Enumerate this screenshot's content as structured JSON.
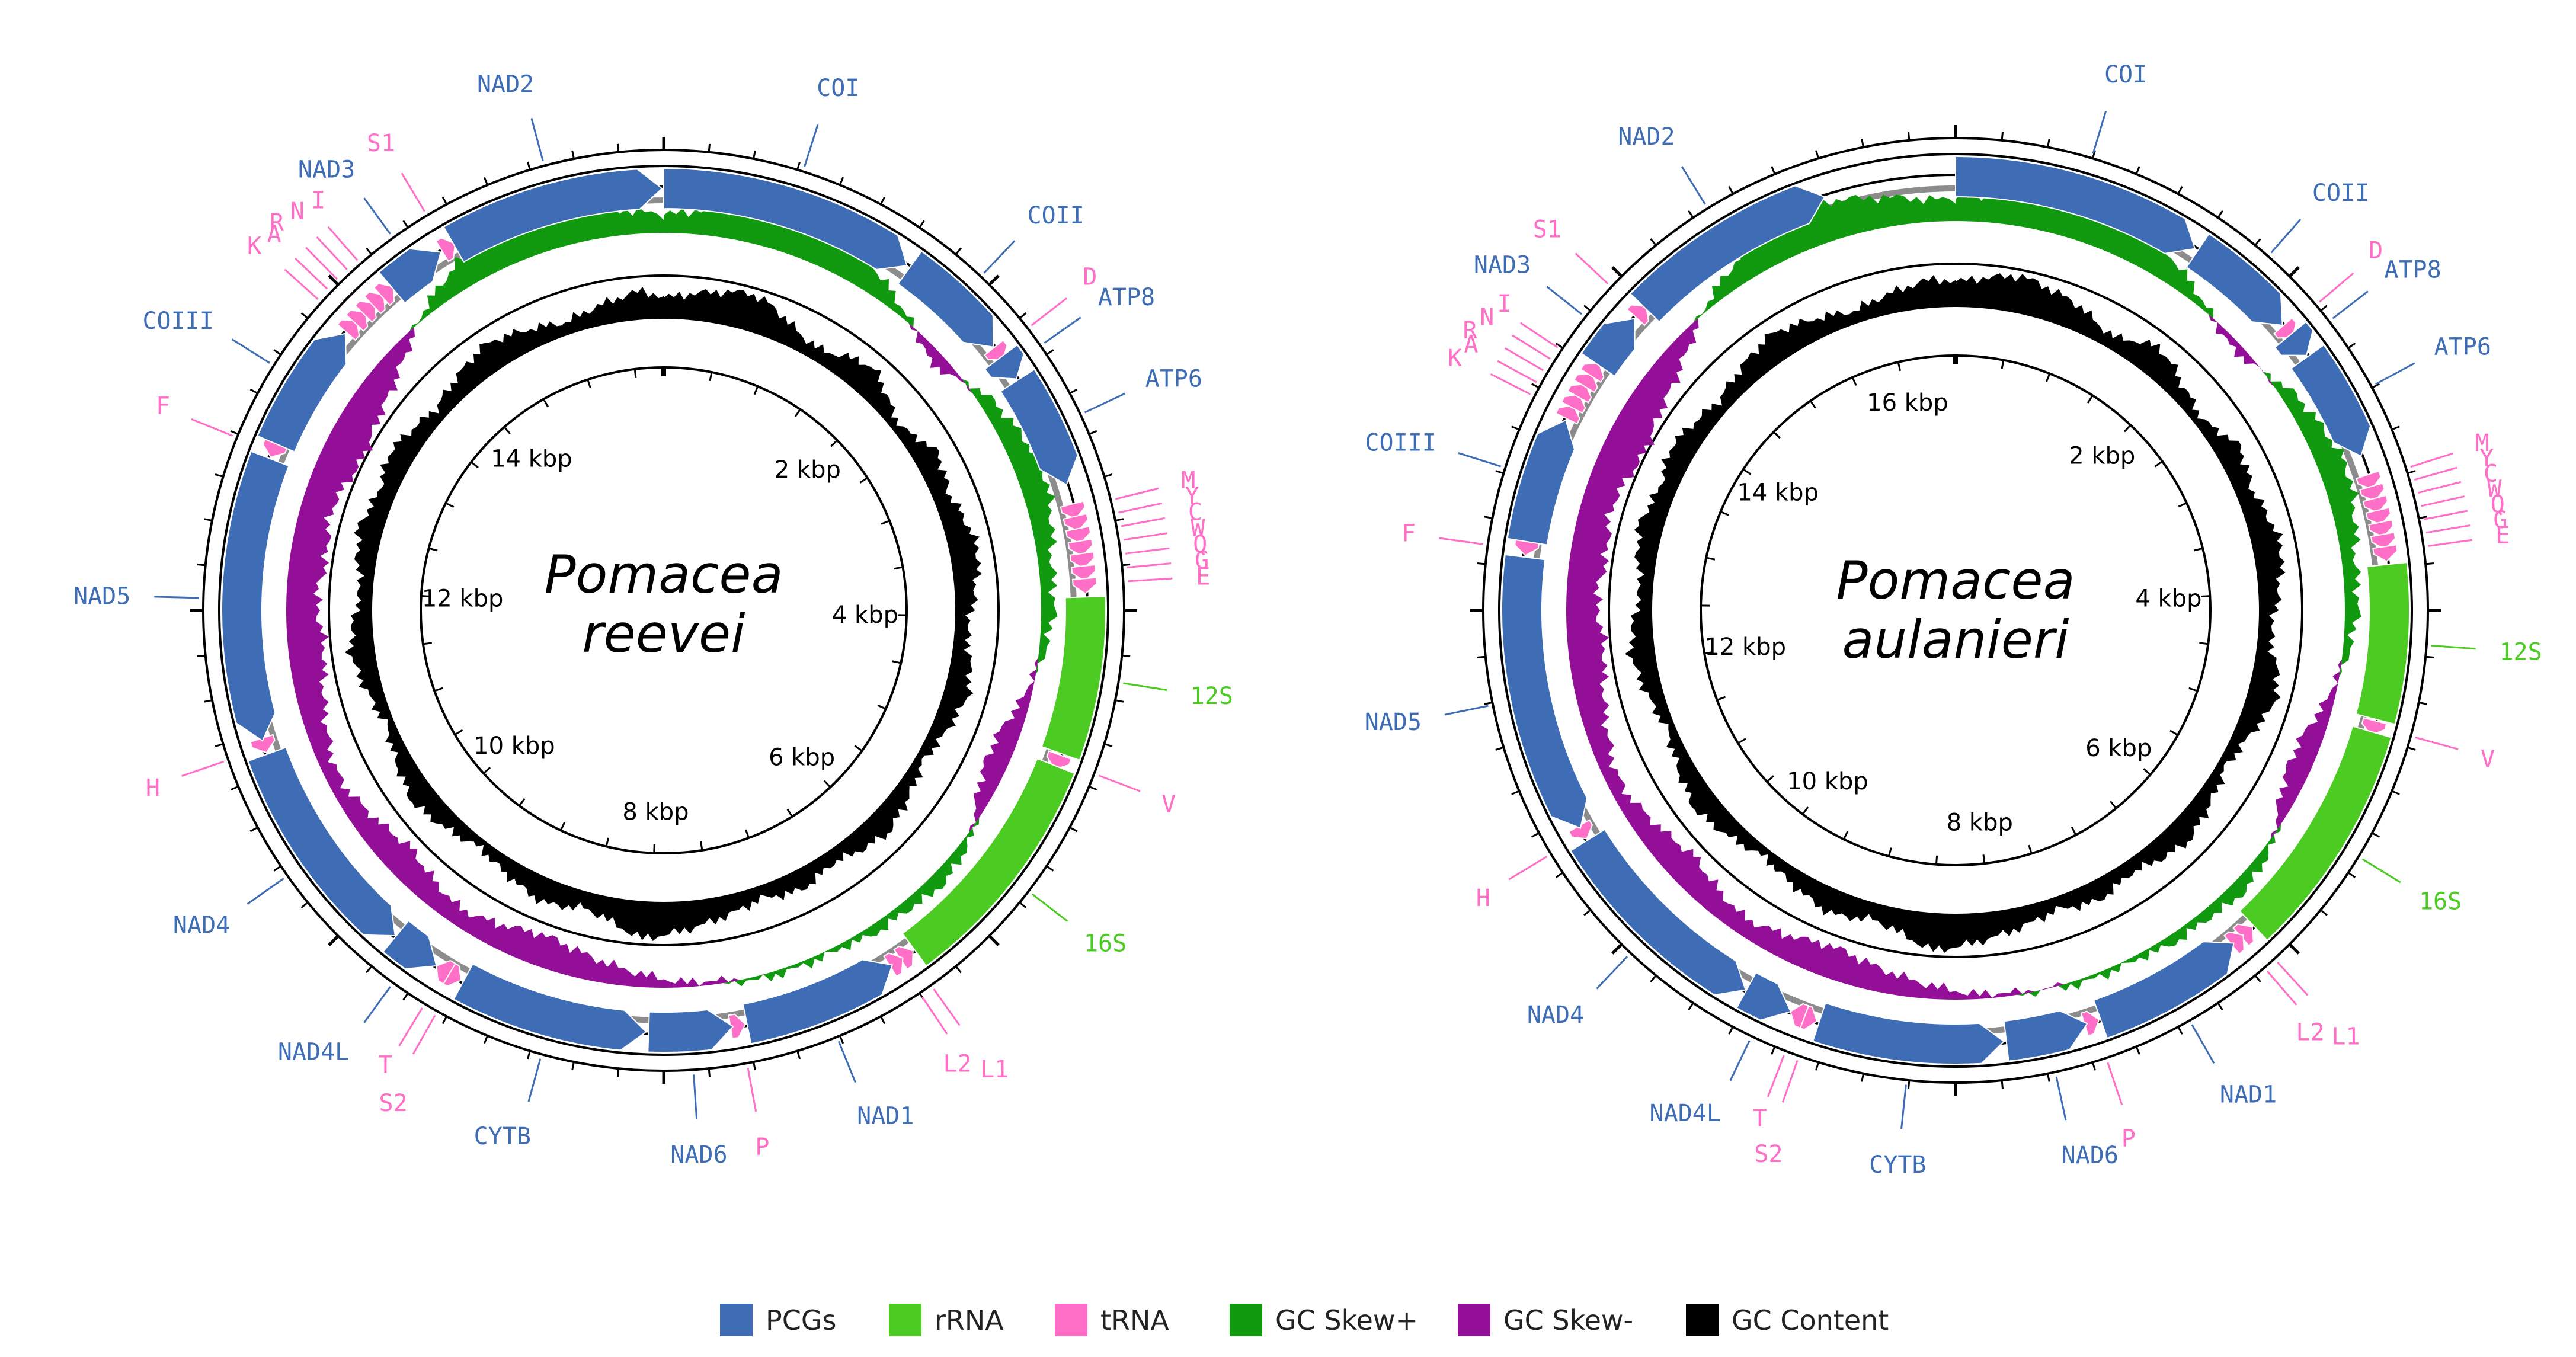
{
  "colors": {
    "pcg": "#3e6db5",
    "rrna": "#4ccb22",
    "trna": "#ff6ec7",
    "gc_skew_pos": "#119a10",
    "gc_skew_neg": "#930f98",
    "gc_content": "#000000",
    "pcg_label": "#3e6db5",
    "rrna_label": "#4ccb22",
    "trna_label": "#ff6ec7"
  },
  "legend": [
    {
      "label": "PCGs",
      "color": "#3e6db5"
    },
    {
      "label": "rRNA",
      "color": "#4ccb22"
    },
    {
      "label": "tRNA",
      "color": "#ff6ec7"
    },
    {
      "label": "GC Skew+",
      "color": "#119a10"
    },
    {
      "label": "GC Skew-",
      "color": "#930f98"
    },
    {
      "label": "GC Content",
      "color": "#000000"
    }
  ],
  "maps": [
    {
      "species_line1": "Pomacea",
      "species_line2": "reevei",
      "genome_length_kbp": 15.8,
      "kbp_ticks": [
        {
          "kbp": 2,
          "label": "2 kbp"
        },
        {
          "kbp": 4,
          "label": "4 kbp"
        },
        {
          "kbp": 6,
          "label": "6 kbp"
        },
        {
          "kbp": 8,
          "label": "8 kbp"
        },
        {
          "kbp": 10,
          "label": "10 kbp"
        },
        {
          "kbp": 12,
          "label": "12 kbp"
        },
        {
          "kbp": 14,
          "label": "14 kbp"
        }
      ],
      "features": [
        {
          "name": "COI",
          "type": "pcg",
          "start": 0,
          "end": 1545,
          "strand": "+"
        },
        {
          "name": "COII",
          "type": "pcg",
          "start": 1565,
          "end": 2255,
          "strand": "+"
        },
        {
          "name": "D",
          "type": "trna",
          "start": 2260,
          "end": 2325,
          "strand": "+"
        },
        {
          "name": "ATP8",
          "type": "pcg",
          "start": 2330,
          "end": 2490,
          "strand": "+"
        },
        {
          "name": "ATP6",
          "type": "pcg",
          "start": 2500,
          "end": 3190,
          "strand": "+"
        },
        {
          "name": "M",
          "type": "trna",
          "start": 3310,
          "end": 3375,
          "strand": "+"
        },
        {
          "name": "Y",
          "type": "trna",
          "start": 3385,
          "end": 3450,
          "strand": "+"
        },
        {
          "name": "C",
          "type": "trna",
          "start": 3460,
          "end": 3525,
          "strand": "+"
        },
        {
          "name": "W",
          "type": "trna",
          "start": 3535,
          "end": 3600,
          "strand": "+"
        },
        {
          "name": "Q",
          "type": "trna",
          "start": 3610,
          "end": 3675,
          "strand": "+"
        },
        {
          "name": "G",
          "type": "trna",
          "start": 3685,
          "end": 3750,
          "strand": "+"
        },
        {
          "name": "E",
          "type": "trna",
          "start": 3760,
          "end": 3825,
          "strand": "+"
        },
        {
          "name": "12S",
          "type": "rrna",
          "start": 3870,
          "end": 4820,
          "strand": "+"
        },
        {
          "name": "V",
          "type": "trna",
          "start": 4830,
          "end": 4895,
          "strand": "+"
        },
        {
          "name": "16S",
          "type": "rrna",
          "start": 4900,
          "end": 6300,
          "strand": "+"
        },
        {
          "name": "L1",
          "type": "trna",
          "start": 6310,
          "end": 6375,
          "strand": "-"
        },
        {
          "name": "L2",
          "type": "trna",
          "start": 6385,
          "end": 6450,
          "strand": "-"
        },
        {
          "name": "NAD1",
          "type": "pcg",
          "start": 6460,
          "end": 7400,
          "strand": "-"
        },
        {
          "name": "P",
          "type": "trna",
          "start": 7410,
          "end": 7475,
          "strand": "-"
        },
        {
          "name": "NAD6",
          "type": "pcg",
          "start": 7485,
          "end": 7990,
          "strand": "-"
        },
        {
          "name": "CYTB",
          "type": "pcg",
          "start": 8005,
          "end": 9145,
          "strand": "-"
        },
        {
          "name": "S2",
          "type": "trna",
          "start": 9160,
          "end": 9225,
          "strand": "-"
        },
        {
          "name": "T",
          "type": "trna",
          "start": 9240,
          "end": 9305,
          "strand": "+"
        },
        {
          "name": "NAD4L",
          "type": "pcg",
          "start": 9330,
          "end": 9630,
          "strand": "-"
        },
        {
          "name": "NAD4",
          "type": "pcg",
          "start": 9635,
          "end": 10975,
          "strand": "-"
        },
        {
          "name": "H",
          "type": "trna",
          "start": 10985,
          "end": 11050,
          "strand": "-"
        },
        {
          "name": "NAD5",
          "type": "pcg",
          "start": 11060,
          "end": 12775,
          "strand": "-"
        },
        {
          "name": "F",
          "type": "trna",
          "start": 12785,
          "end": 12850,
          "strand": "-"
        },
        {
          "name": "COIII",
          "type": "pcg",
          "start": 12870,
          "end": 13650,
          "strand": "+"
        },
        {
          "name": "K",
          "type": "trna",
          "start": 13660,
          "end": 13725,
          "strand": "+"
        },
        {
          "name": "A",
          "type": "trna",
          "start": 13735,
          "end": 13800,
          "strand": "+"
        },
        {
          "name": "R",
          "type": "trna",
          "start": 13810,
          "end": 13875,
          "strand": "+"
        },
        {
          "name": "N",
          "type": "trna",
          "start": 13885,
          "end": 13950,
          "strand": "+"
        },
        {
          "name": "I",
          "type": "trna",
          "start": 13960,
          "end": 14025,
          "strand": "+"
        },
        {
          "name": "NAD3",
          "type": "pcg",
          "start": 14040,
          "end": 14400,
          "strand": "+"
        },
        {
          "name": "S1",
          "type": "trna",
          "start": 14410,
          "end": 14475,
          "strand": "+"
        },
        {
          "name": "NAD2",
          "type": "pcg",
          "start": 14490,
          "end": 15790,
          "strand": "+"
        }
      ],
      "gc_skew": [
        4,
        5,
        6,
        7,
        8,
        9,
        9,
        8,
        7,
        5,
        3,
        1,
        -1,
        -3,
        -2,
        1,
        3,
        4,
        5,
        6,
        6,
        5,
        4,
        3,
        3,
        3,
        2,
        1,
        -1,
        -2,
        -4,
        -5,
        -5,
        -4,
        -2,
        1,
        2,
        3,
        3,
        2,
        2,
        2,
        1,
        1,
        1,
        1,
        1,
        0,
        -1,
        -1,
        -2,
        -3,
        -4,
        -5,
        -6,
        -7,
        -7,
        -6,
        -5,
        -4,
        -4,
        -5,
        -6,
        -7,
        -6,
        -5,
        -4,
        -3,
        -3,
        -4,
        -5,
        -6,
        -7,
        -8,
        -8,
        -7,
        -7,
        -8,
        -8,
        -7,
        -7,
        -8,
        -9,
        -9,
        -8,
        -7,
        -6,
        -4,
        -2,
        1,
        3,
        5,
        7,
        8,
        9,
        9,
        8,
        7,
        6,
        5
      ],
      "gc_content": [
        5,
        6,
        7,
        8,
        9,
        8,
        6,
        4,
        3,
        4,
        6,
        7,
        5,
        3,
        2,
        4,
        6,
        5,
        4,
        5,
        6,
        7,
        6,
        5,
        4,
        3,
        4,
        5,
        6,
        5,
        4,
        3,
        2,
        3,
        4,
        5,
        6,
        5,
        4,
        3,
        4,
        5,
        4,
        3,
        4,
        5,
        6,
        7,
        8,
        9,
        7,
        5,
        4,
        5,
        6,
        5,
        4,
        3,
        2,
        3,
        4,
        5,
        6,
        5,
        4,
        3,
        2,
        3,
        4,
        5,
        6,
        5,
        4,
        3,
        4,
        5,
        6,
        5,
        4,
        5,
        6,
        5,
        4,
        3,
        4,
        5,
        6,
        7,
        6,
        5,
        4,
        3,
        4,
        5,
        6,
        7
      ]
    },
    {
      "species_line1": "Pomacea",
      "species_line2": "aulanieri",
      "genome_length_kbp": 16.6,
      "kbp_ticks": [
        {
          "kbp": 2,
          "label": "2 kbp"
        },
        {
          "kbp": 4,
          "label": "4 kbp"
        },
        {
          "kbp": 6,
          "label": "6 kbp"
        },
        {
          "kbp": 8,
          "label": "8 kbp"
        },
        {
          "kbp": 10,
          "label": "10 kbp"
        },
        {
          "kbp": 12,
          "label": "12 kbp"
        },
        {
          "kbp": 14,
          "label": "14 kbp"
        },
        {
          "kbp": 16,
          "label": "16 kbp"
        }
      ],
      "features": [
        {
          "name": "COI",
          "type": "pcg",
          "start": 0,
          "end": 1545,
          "strand": "+"
        },
        {
          "name": "COII",
          "type": "pcg",
          "start": 1565,
          "end": 2255,
          "strand": "+"
        },
        {
          "name": "D",
          "type": "trna",
          "start": 2260,
          "end": 2325,
          "strand": "+"
        },
        {
          "name": "ATP8",
          "type": "pcg",
          "start": 2330,
          "end": 2490,
          "strand": "+"
        },
        {
          "name": "ATP6",
          "type": "pcg",
          "start": 2500,
          "end": 3190,
          "strand": "+"
        },
        {
          "name": "M",
          "type": "trna",
          "start": 3310,
          "end": 3375,
          "strand": "+"
        },
        {
          "name": "Y",
          "type": "trna",
          "start": 3385,
          "end": 3450,
          "strand": "+"
        },
        {
          "name": "C",
          "type": "trna",
          "start": 3460,
          "end": 3525,
          "strand": "+"
        },
        {
          "name": "W",
          "type": "trna",
          "start": 3535,
          "end": 3600,
          "strand": "+"
        },
        {
          "name": "Q",
          "type": "trna",
          "start": 3610,
          "end": 3675,
          "strand": "+"
        },
        {
          "name": "G",
          "type": "trna",
          "start": 3685,
          "end": 3750,
          "strand": "+"
        },
        {
          "name": "E",
          "type": "trna",
          "start": 3760,
          "end": 3825,
          "strand": "+"
        },
        {
          "name": "12S",
          "type": "rrna",
          "start": 3870,
          "end": 4820,
          "strand": "+"
        },
        {
          "name": "V",
          "type": "trna",
          "start": 4830,
          "end": 4895,
          "strand": "+"
        },
        {
          "name": "16S",
          "type": "rrna",
          "start": 4900,
          "end": 6300,
          "strand": "+"
        },
        {
          "name": "L1",
          "type": "trna",
          "start": 6310,
          "end": 6375,
          "strand": "-"
        },
        {
          "name": "L2",
          "type": "trna",
          "start": 6385,
          "end": 6450,
          "strand": "-"
        },
        {
          "name": "NAD1",
          "type": "pcg",
          "start": 6460,
          "end": 7400,
          "strand": "-"
        },
        {
          "name": "P",
          "type": "trna",
          "start": 7410,
          "end": 7475,
          "strand": "-"
        },
        {
          "name": "NAD6",
          "type": "pcg",
          "start": 7485,
          "end": 7990,
          "strand": "-"
        },
        {
          "name": "CYTB",
          "type": "pcg",
          "start": 8005,
          "end": 9145,
          "strand": "-"
        },
        {
          "name": "S2",
          "type": "trna",
          "start": 9160,
          "end": 9225,
          "strand": "-"
        },
        {
          "name": "T",
          "type": "trna",
          "start": 9240,
          "end": 9305,
          "strand": "+"
        },
        {
          "name": "NAD4L",
          "type": "pcg",
          "start": 9330,
          "end": 9630,
          "strand": "-"
        },
        {
          "name": "NAD4",
          "type": "pcg",
          "start": 9635,
          "end": 10975,
          "strand": "-"
        },
        {
          "name": "H",
          "type": "trna",
          "start": 10985,
          "end": 11050,
          "strand": "-"
        },
        {
          "name": "NAD5",
          "type": "pcg",
          "start": 11060,
          "end": 12775,
          "strand": "-"
        },
        {
          "name": "F",
          "type": "trna",
          "start": 12785,
          "end": 12850,
          "strand": "-"
        },
        {
          "name": "COIII",
          "type": "pcg",
          "start": 12870,
          "end": 13650,
          "strand": "+"
        },
        {
          "name": "K",
          "type": "trna",
          "start": 13660,
          "end": 13725,
          "strand": "+"
        },
        {
          "name": "A",
          "type": "trna",
          "start": 13735,
          "end": 13800,
          "strand": "+"
        },
        {
          "name": "R",
          "type": "trna",
          "start": 13810,
          "end": 13875,
          "strand": "+"
        },
        {
          "name": "N",
          "type": "trna",
          "start": 13885,
          "end": 13950,
          "strand": "+"
        },
        {
          "name": "I",
          "type": "trna",
          "start": 13960,
          "end": 14025,
          "strand": "+"
        },
        {
          "name": "NAD3",
          "type": "pcg",
          "start": 14040,
          "end": 14400,
          "strand": "+"
        },
        {
          "name": "S1",
          "type": "trna",
          "start": 14410,
          "end": 14475,
          "strand": "+"
        },
        {
          "name": "NAD2",
          "type": "pcg",
          "start": 14490,
          "end": 15790,
          "strand": "+"
        }
      ],
      "gc_skew": [
        5,
        6,
        7,
        8,
        9,
        9,
        9,
        8,
        7,
        5,
        3,
        1,
        -1,
        -2,
        -1,
        1,
        3,
        4,
        5,
        6,
        6,
        5,
        4,
        3,
        3,
        3,
        2,
        1,
        -1,
        -2,
        -4,
        -5,
        -5,
        -4,
        -2,
        1,
        2,
        3,
        3,
        2,
        2,
        2,
        1,
        1,
        1,
        1,
        0,
        0,
        -1,
        -1,
        -2,
        -3,
        -4,
        -5,
        -6,
        -7,
        -7,
        -6,
        -5,
        -4,
        -4,
        -5,
        -6,
        -7,
        -6,
        -5,
        -4,
        -3,
        -3,
        -4,
        -5,
        -6,
        -7,
        -8,
        -8,
        -7,
        -7,
        -8,
        -8,
        -7,
        -7,
        -8,
        -9,
        -9,
        -8,
        -7,
        -6,
        -4,
        -2,
        1,
        3,
        5,
        7,
        8,
        9,
        9,
        8,
        7,
        6,
        5
      ],
      "gc_content": [
        6,
        7,
        8,
        9,
        8,
        7,
        6,
        4,
        3,
        5,
        7,
        6,
        4,
        3,
        2,
        4,
        6,
        5,
        4,
        5,
        6,
        7,
        6,
        5,
        4,
        3,
        4,
        6,
        7,
        6,
        4,
        3,
        2,
        3,
        4,
        5,
        6,
        5,
        4,
        3,
        4,
        5,
        4,
        3,
        4,
        5,
        6,
        7,
        8,
        9,
        7,
        5,
        4,
        5,
        6,
        5,
        4,
        3,
        2,
        3,
        4,
        5,
        6,
        5,
        4,
        3,
        2,
        3,
        4,
        5,
        6,
        5,
        4,
        3,
        4,
        5,
        6,
        5,
        4,
        5,
        6,
        5,
        4,
        3,
        4,
        5,
        6,
        7,
        6,
        5,
        4,
        3,
        4,
        5,
        6,
        7
      ]
    }
  ]
}
